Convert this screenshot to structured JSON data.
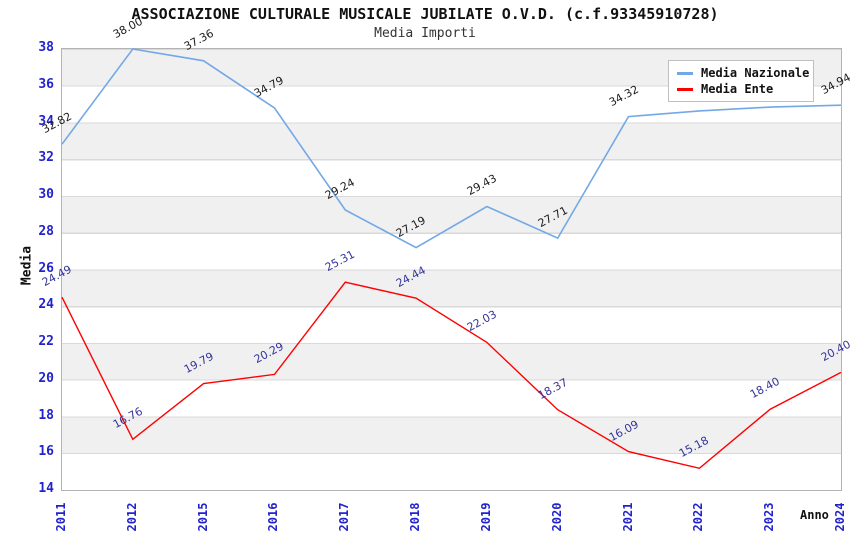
{
  "header": {
    "title": "ASSOCIAZIONE CULTURALE MUSICALE JUBILATE O.V.D. (c.f.93345910728)",
    "subtitle": "Media Importi"
  },
  "axes": {
    "y_label": "Media",
    "x_label": "Anno",
    "y_ticks": [
      38,
      36,
      34,
      32,
      30,
      28,
      26,
      24,
      22,
      20,
      18,
      16,
      14
    ],
    "tick_color": "#2323cd"
  },
  "legend": {
    "items": [
      {
        "label": "Media Nazionale",
        "color": "#73a8e6"
      },
      {
        "label": "Media Ente",
        "color": "#ff0000"
      }
    ]
  },
  "chart_data": {
    "type": "line",
    "title": "ASSOCIAZIONE CULTURALE MUSICALE JUBILATE O.V.D. (c.f.93345910728)",
    "subtitle": "Media Importi",
    "xlabel": "Anno",
    "ylabel": "Media",
    "ylim": [
      14,
      38
    ],
    "band_step": 2,
    "grid": "horizontal-bands",
    "legend_position": "top-right",
    "x": [
      "2011",
      "2012",
      "2015",
      "2016",
      "2017",
      "2018",
      "2019",
      "2020",
      "2021",
      "2022",
      "2023",
      "2024"
    ],
    "series": [
      {
        "name": "Media Nazionale",
        "color": "#73a8e6",
        "label_color": "#1a1a1a",
        "values": [
          32.82,
          38.0,
          37.36,
          34.79,
          29.24,
          27.19,
          29.43,
          27.71,
          34.32,
          34.63,
          34.84,
          34.94
        ],
        "labels": [
          "32.82",
          "38.00",
          "37.36",
          "34.79",
          "29.24",
          "27.19",
          "29.43",
          "27.71",
          "34.32",
          "",
          "",
          "34.94"
        ]
      },
      {
        "name": "Media Ente",
        "color": "#ff0000",
        "label_color": "#333399",
        "values": [
          24.49,
          16.76,
          19.79,
          20.29,
          25.31,
          24.44,
          22.03,
          18.37,
          16.09,
          15.18,
          18.4,
          20.4
        ],
        "labels": [
          "24.49",
          "16.76",
          "19.79",
          "20.29",
          "25.31",
          "24.44",
          "22.03",
          "18.37",
          "16.09",
          "15.18",
          "18.40",
          "20.40"
        ]
      }
    ]
  }
}
